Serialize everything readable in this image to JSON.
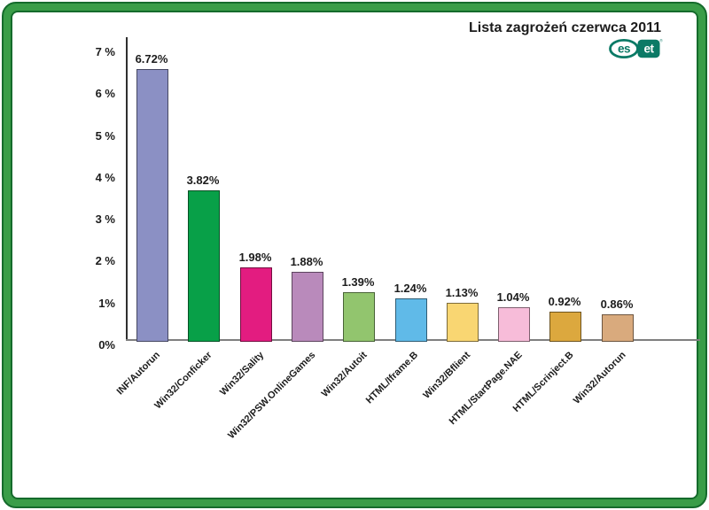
{
  "header": {
    "title": "Lista zagrożeń czerwca 2011",
    "logo": {
      "brand": "eset",
      "left_text": "es",
      "right_text": "et",
      "registered_mark": "®",
      "color": "#0b7a66"
    }
  },
  "chart_data": {
    "type": "bar",
    "title": "Lista zagrożeń czerwca 2011",
    "categories": [
      "INF/Autorun",
      "Win32/Conficker",
      "Win32/Sality",
      "Win32/PSW.OnlineGames",
      "Win32/Autoit",
      "HTML/Iframe.B",
      "Win32/Bflient",
      "HTML/StartPage.NAE",
      "HTML/Scrinject.B",
      "Win32/Autorun"
    ],
    "values": [
      6.72,
      3.82,
      1.98,
      1.88,
      1.39,
      1.24,
      1.13,
      1.04,
      0.92,
      0.86
    ],
    "value_labels": [
      "6.72%",
      "3.82%",
      "1.98%",
      "1.88%",
      "1.39%",
      "1.24%",
      "1.13%",
      "1.04%",
      "0.92%",
      "0.86%"
    ],
    "bar_colors": [
      "#8b90c4",
      "#08a048",
      "#e31c80",
      "#b98abb",
      "#92c56e",
      "#60bae8",
      "#f9d672",
      "#f7bcd9",
      "#dca83e",
      "#d9aa7d"
    ],
    "xlabel": "",
    "ylabel": "",
    "ylim": [
      0,
      7
    ],
    "y_ticks": [
      {
        "value": 7,
        "label": "7 %"
      },
      {
        "value": 6,
        "label": "6 %"
      },
      {
        "value": 5,
        "label": "5 %"
      },
      {
        "value": 4,
        "label": "4 %"
      },
      {
        "value": 3,
        "label": "3 %"
      },
      {
        "value": 2,
        "label": "2 %"
      },
      {
        "value": 1,
        "label": "1%"
      },
      {
        "value": 0,
        "label": "0%"
      }
    ],
    "grid": false,
    "legend": false
  }
}
